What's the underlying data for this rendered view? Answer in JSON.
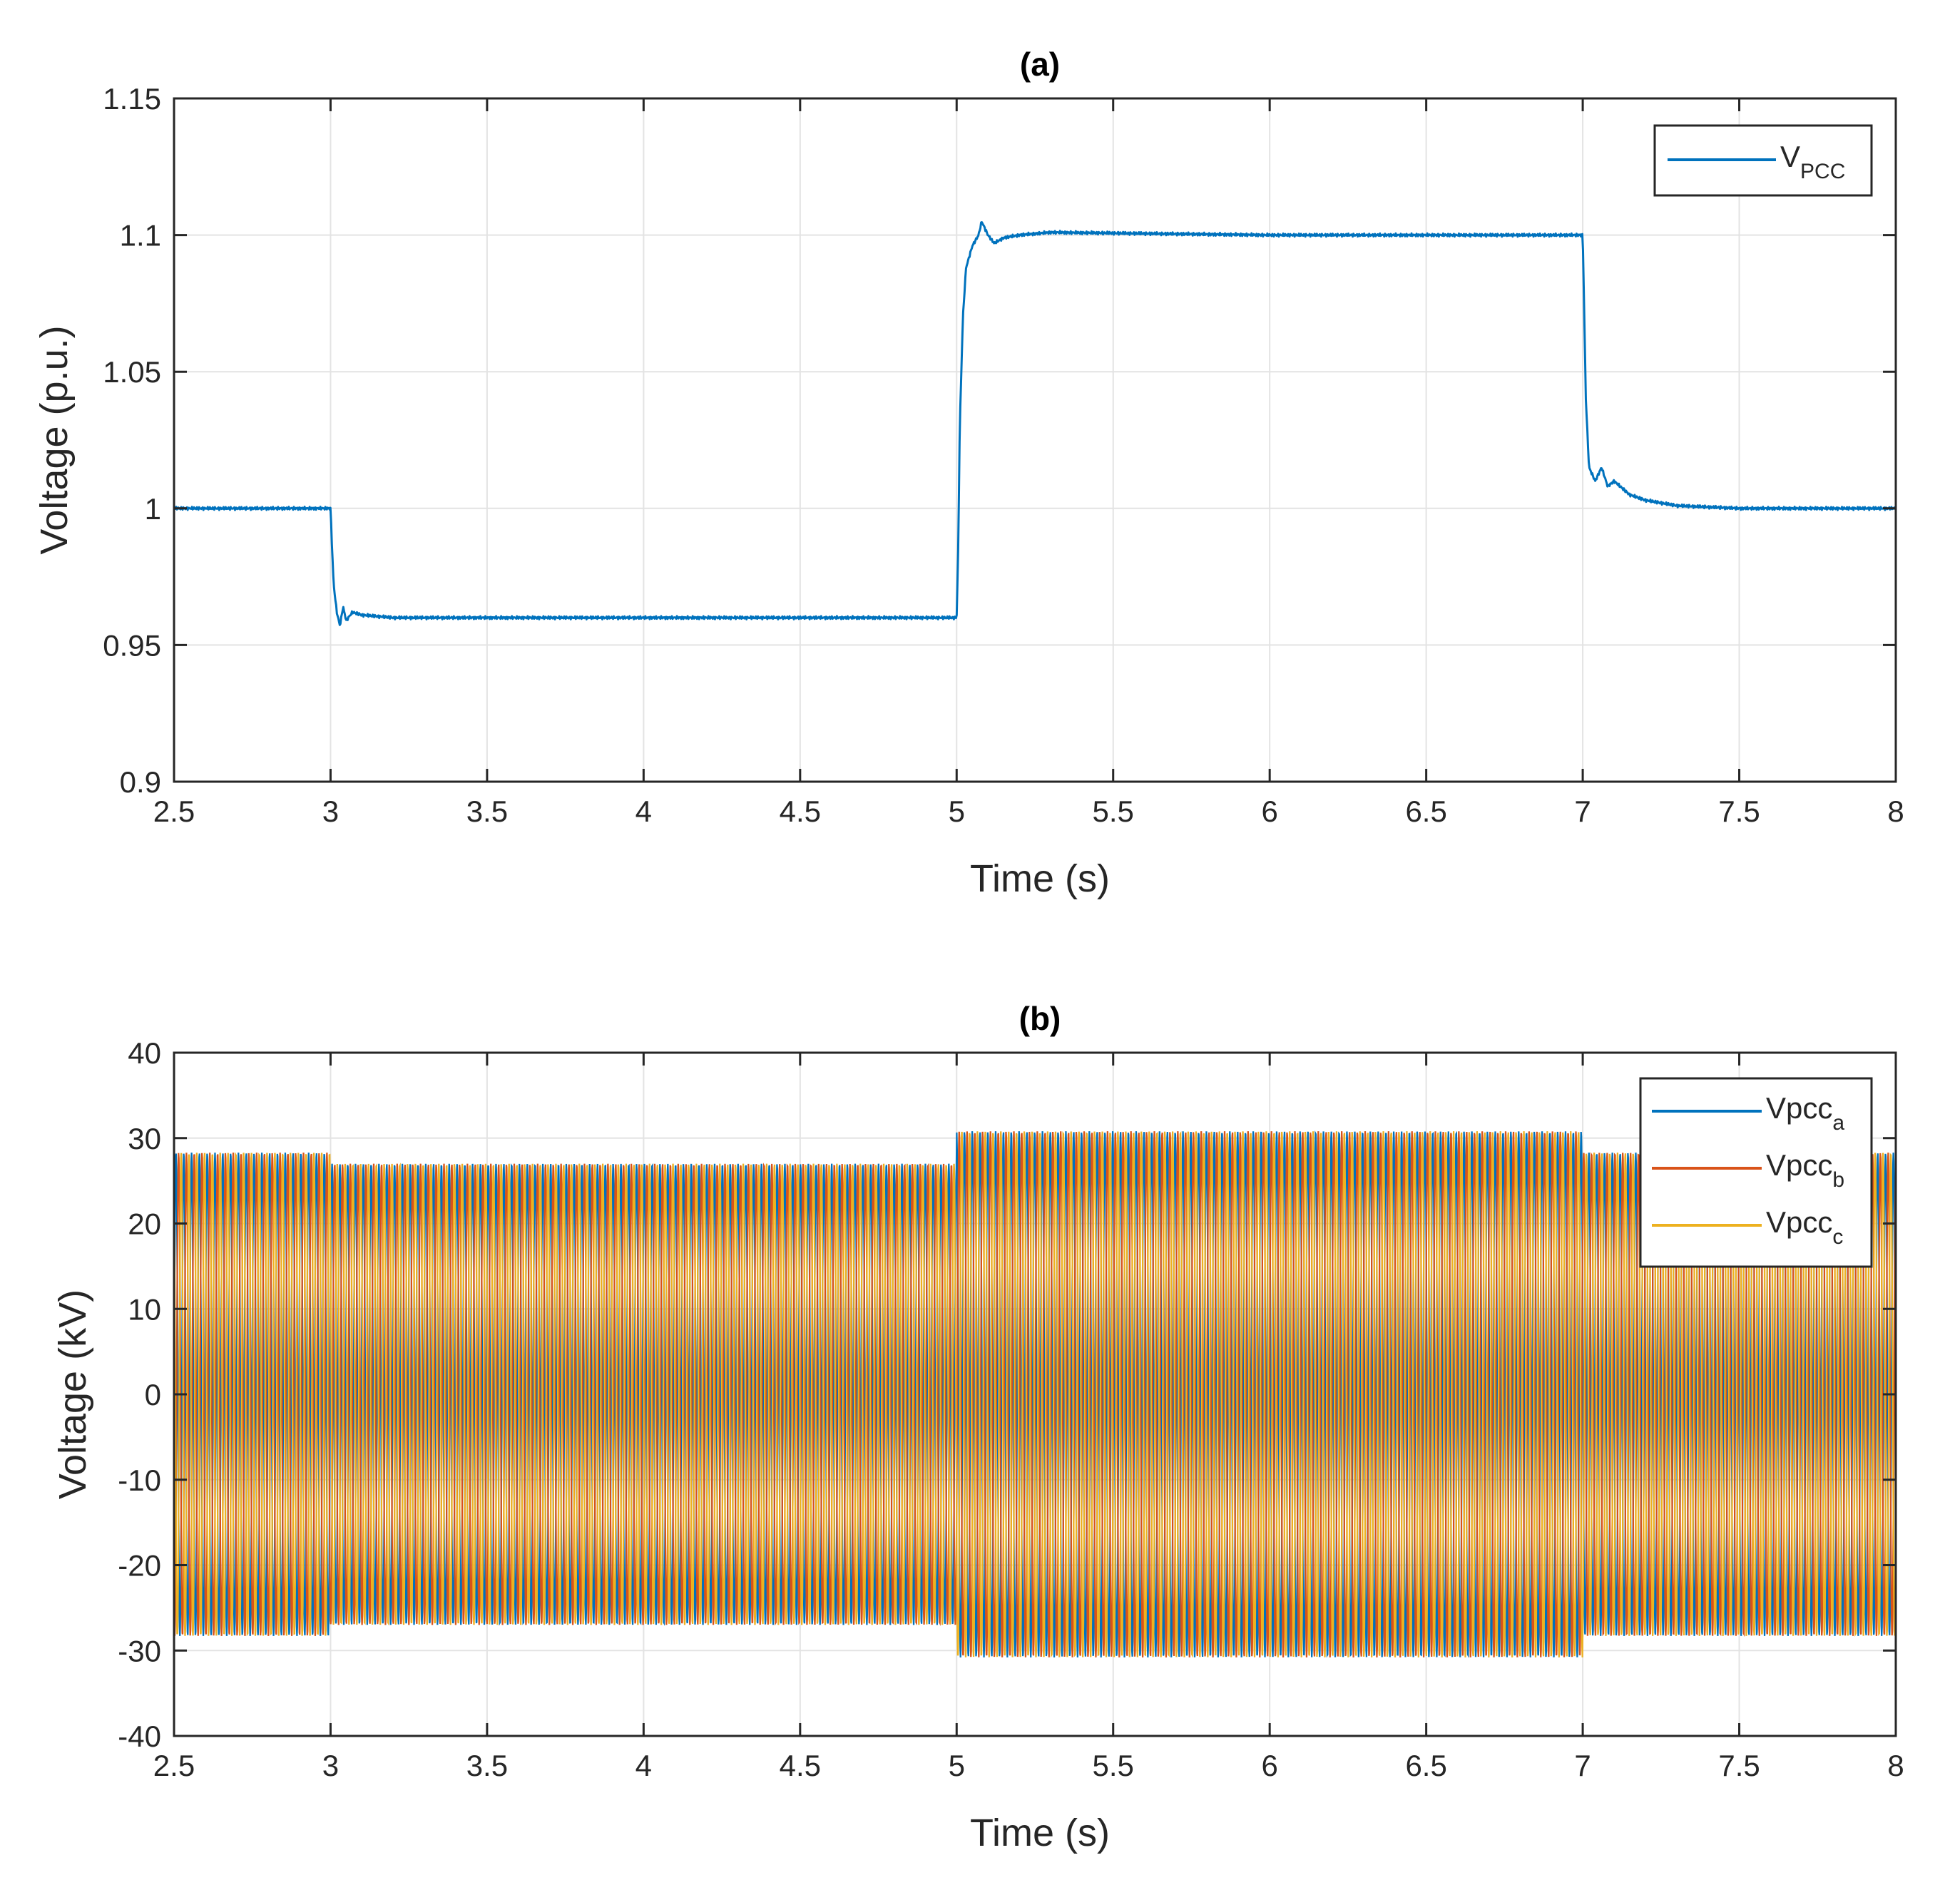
{
  "chart_data": [
    {
      "type": "line",
      "panel": "a",
      "title": "(a)",
      "xlabel": "Time (s)",
      "ylabel": "Voltage (p.u.)",
      "xlim": [
        2.5,
        8
      ],
      "ylim": [
        0.9,
        1.15
      ],
      "xticks": [
        2.5,
        3,
        3.5,
        4,
        4.5,
        5,
        5.5,
        6,
        6.5,
        7,
        7.5,
        8
      ],
      "xtick_labels": [
        "2.5",
        "3",
        "3.5",
        "4",
        "4.5",
        "5",
        "5.5",
        "6",
        "6.5",
        "7",
        "7.5",
        "8"
      ],
      "yticks": [
        0.9,
        0.95,
        1,
        1.05,
        1.1,
        1.15
      ],
      "ytick_labels": [
        "0.9",
        "0.95",
        "1",
        "1.05",
        "1.1",
        "1.15"
      ],
      "grid": true,
      "legend_position": "top-right",
      "series": [
        {
          "name": "V",
          "name_sub": "PCC",
          "color": "#0072BD",
          "x": [
            2.5,
            3.0,
            3.005,
            3.01,
            3.02,
            3.03,
            3.04,
            3.05,
            3.07,
            3.1,
            3.2,
            4.0,
            4.99,
            5.0,
            5.005,
            5.01,
            5.02,
            5.03,
            5.05,
            5.07,
            5.08,
            5.1,
            5.12,
            5.15,
            5.2,
            5.3,
            6.0,
            6.99,
            7.0,
            7.005,
            7.01,
            7.02,
            7.04,
            7.06,
            7.08,
            7.1,
            7.15,
            7.2,
            7.3,
            7.5,
            8.0
          ],
          "y": [
            1.0,
            1.0,
            0.985,
            0.972,
            0.962,
            0.957,
            0.964,
            0.959,
            0.962,
            0.961,
            0.96,
            0.96,
            0.96,
            0.96,
            0.985,
            1.03,
            1.07,
            1.088,
            1.096,
            1.1,
            1.105,
            1.1,
            1.097,
            1.099,
            1.1,
            1.101,
            1.1,
            1.1,
            1.1,
            1.07,
            1.04,
            1.015,
            1.01,
            1.015,
            1.008,
            1.01,
            1.005,
            1.003,
            1.001,
            1.0,
            1.0
          ]
        }
      ]
    },
    {
      "type": "line",
      "panel": "b",
      "title": "(b)",
      "xlabel": "Time (s)",
      "ylabel": "Voltage (kV)",
      "xlim": [
        2.5,
        8
      ],
      "ylim": [
        -40,
        40
      ],
      "xticks": [
        2.5,
        3,
        3.5,
        4,
        4.5,
        5,
        5.5,
        6,
        6.5,
        7,
        7.5,
        8
      ],
      "xtick_labels": [
        "2.5",
        "3",
        "3.5",
        "4",
        "4.5",
        "5",
        "5.5",
        "6",
        "6.5",
        "7",
        "7.5",
        "8"
      ],
      "yticks": [
        -40,
        -30,
        -20,
        -10,
        0,
        10,
        20,
        30,
        40
      ],
      "ytick_labels": [
        "-40",
        "-30",
        "-20",
        "-10",
        "0",
        "10",
        "20",
        "30",
        "40"
      ],
      "grid": true,
      "legend_position": "top-right",
      "waveform": "three-phase sinusoid, 120 degrees phase shift",
      "envelope": {
        "time_s": [
          2.5,
          3.0,
          5.0,
          7.0,
          8.0
        ],
        "amplitude_kV": [
          28.3,
          27.0,
          30.8,
          28.3
        ]
      },
      "series": [
        {
          "name": "Vpcc",
          "name_sub": "a",
          "color": "#0072BD",
          "phase_deg": 0
        },
        {
          "name": "Vpcc",
          "name_sub": "b",
          "color": "#D95319",
          "phase_deg": -120
        },
        {
          "name": "Vpcc",
          "name_sub": "c",
          "color": "#EDB120",
          "phase_deg": 120
        }
      ]
    }
  ]
}
